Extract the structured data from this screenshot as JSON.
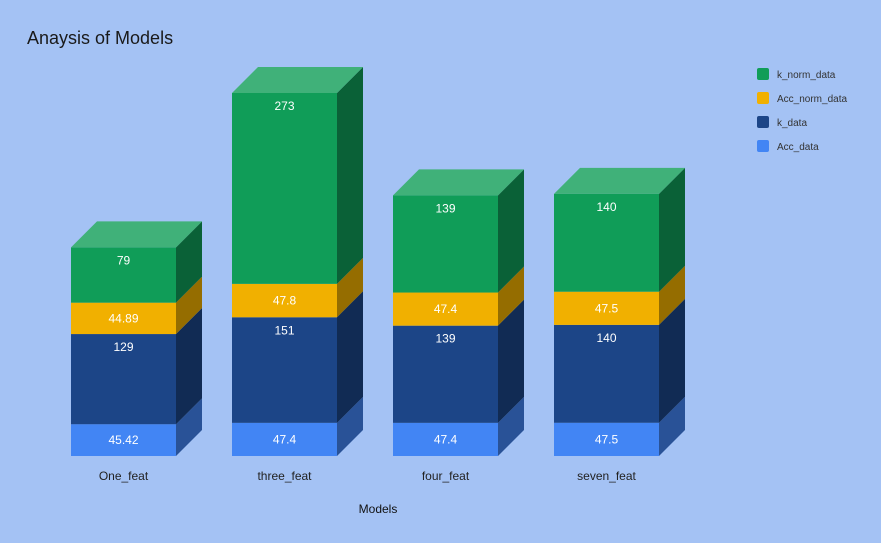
{
  "chart_data": {
    "type": "bar",
    "stacked": true,
    "style": "3d",
    "title": "Anaysis of Models",
    "xlabel": "Models",
    "ylabel": "",
    "categories": [
      "One_feat",
      "three_feat",
      "four_feat",
      "seven_feat"
    ],
    "series": [
      {
        "name": "Acc_data",
        "color": "#4285f4",
        "values": [
          45.42,
          47.4,
          47.4,
          47.5
        ]
      },
      {
        "name": "k_data",
        "color": "#1c4587",
        "values": [
          129,
          151,
          139,
          140
        ]
      },
      {
        "name": "Acc_norm_data",
        "color": "#f1b000",
        "values": [
          44.89,
          47.8,
          47.4,
          47.5
        ]
      },
      {
        "name": "k_norm_data",
        "color": "#109d58",
        "values": [
          79,
          273,
          139,
          140
        ]
      }
    ],
    "legend_order": [
      "k_norm_data",
      "Acc_norm_data",
      "k_data",
      "Acc_data"
    ],
    "legend_position": "right",
    "grid": false,
    "background": "#a4c2f4"
  }
}
